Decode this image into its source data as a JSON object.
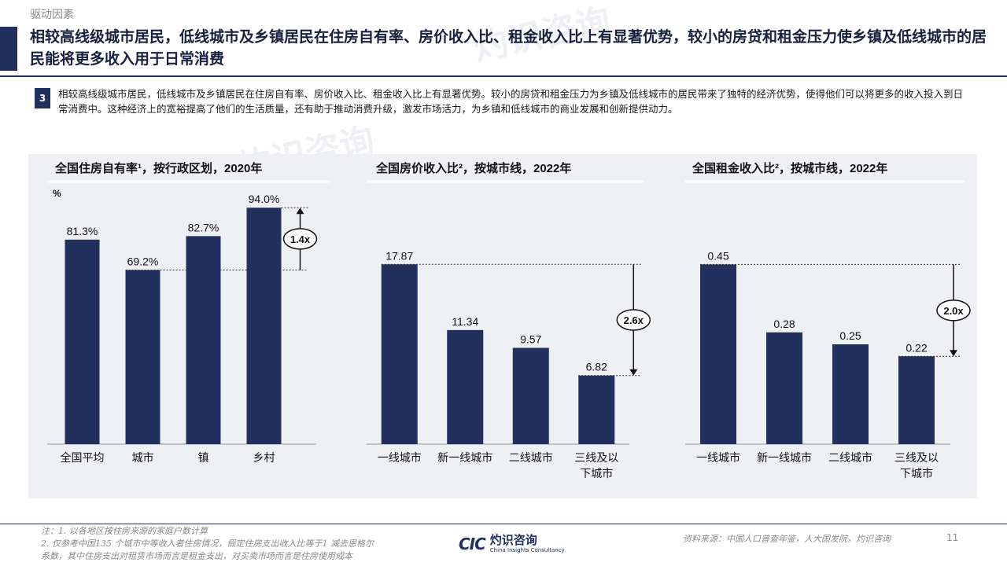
{
  "header": {
    "section": "驱动因素",
    "title": "相较高线级城市居民，低线城市及乡镇居民在住房自有率、房价收入比、租金收入比上有显著优势，较小的房贷和租金压力使乡镇及低线城市的居民能将更多收入用于日常消费"
  },
  "summary": {
    "number": "3",
    "text": "相较高线级城市居民，低线城市及乡镇居民在住房自有率、房价收入比、租金收入比上有显著优势。较小的房贷和租金压力为乡镇及低线城市的居民带来了独特的经济优势，使得他们可以将更多的收入投入到日常消费中。这种经济上的宽裕提高了他们的生活质量，还有助于推动消费升级，激发市场活力，为乡镇和低线城市的商业发展和创新提供动力。"
  },
  "colors": {
    "bar": "#22305e",
    "panel": "#eef0f4"
  },
  "chart_data": [
    {
      "type": "bar",
      "title": "全国住房自有率¹，按行政区划，2020年",
      "unit": "%",
      "categories": [
        "全国平均",
        "城市",
        "镇",
        "乡村"
      ],
      "values": [
        81.3,
        69.2,
        82.7,
        94.0
      ],
      "labels": [
        "81.3%",
        "69.2%",
        "82.7%",
        "94.0%"
      ],
      "ylim": [
        0,
        100
      ],
      "annotation": {
        "text": "1.4x",
        "from_category": "城市",
        "to_category": "乡村"
      }
    },
    {
      "type": "bar",
      "title": "全国房价收入比²，按城市线，2022年",
      "categories": [
        "一线城市",
        "新一线城市",
        "二线城市",
        "三线及以\n下城市"
      ],
      "values": [
        17.87,
        11.34,
        9.57,
        6.82
      ],
      "labels": [
        "17.87",
        "11.34",
        "9.57",
        "6.82"
      ],
      "ylim": [
        0,
        25
      ],
      "annotation": {
        "text": "2.6x",
        "from_category": "一线城市",
        "to_category": "三线及以\n下城市"
      }
    },
    {
      "type": "bar",
      "title": "全国租金收入比²，按城市线，2022年",
      "categories": [
        "一线城市",
        "新一线城市",
        "二线城市",
        "三线及以\n下城市"
      ],
      "values": [
        0.45,
        0.28,
        0.25,
        0.22
      ],
      "labels": [
        "0.45",
        "0.28",
        "0.25",
        "0.22"
      ],
      "ylim": [
        0,
        0.63
      ],
      "annotation": {
        "text": "2.0x",
        "from_category": "一线城市",
        "to_category": "三线及以\n下城市"
      }
    }
  ],
  "footer": {
    "note1": "注：1. 以各地区按住房来源的家庭户数计算",
    "note2": "2. 仅参考中国135 个城市中等收入者住房情况，假定住房支出收入比等于1 减去恩格尔",
    "note3": "系数，其中住房支出对租赁市场而言是租金支出，对买卖市场而言是住房使用成本",
    "source": "资料来源：中国人口普查年鉴，人大国发院，灼识咨询",
    "page": "11",
    "logo_mark": "CIC",
    "logo_cn": "灼识咨询",
    "logo_en": "China Insights Consultancy",
    "watermark_cn": "灼识咨询",
    "watermark_en": "China Insights Consultancy"
  }
}
